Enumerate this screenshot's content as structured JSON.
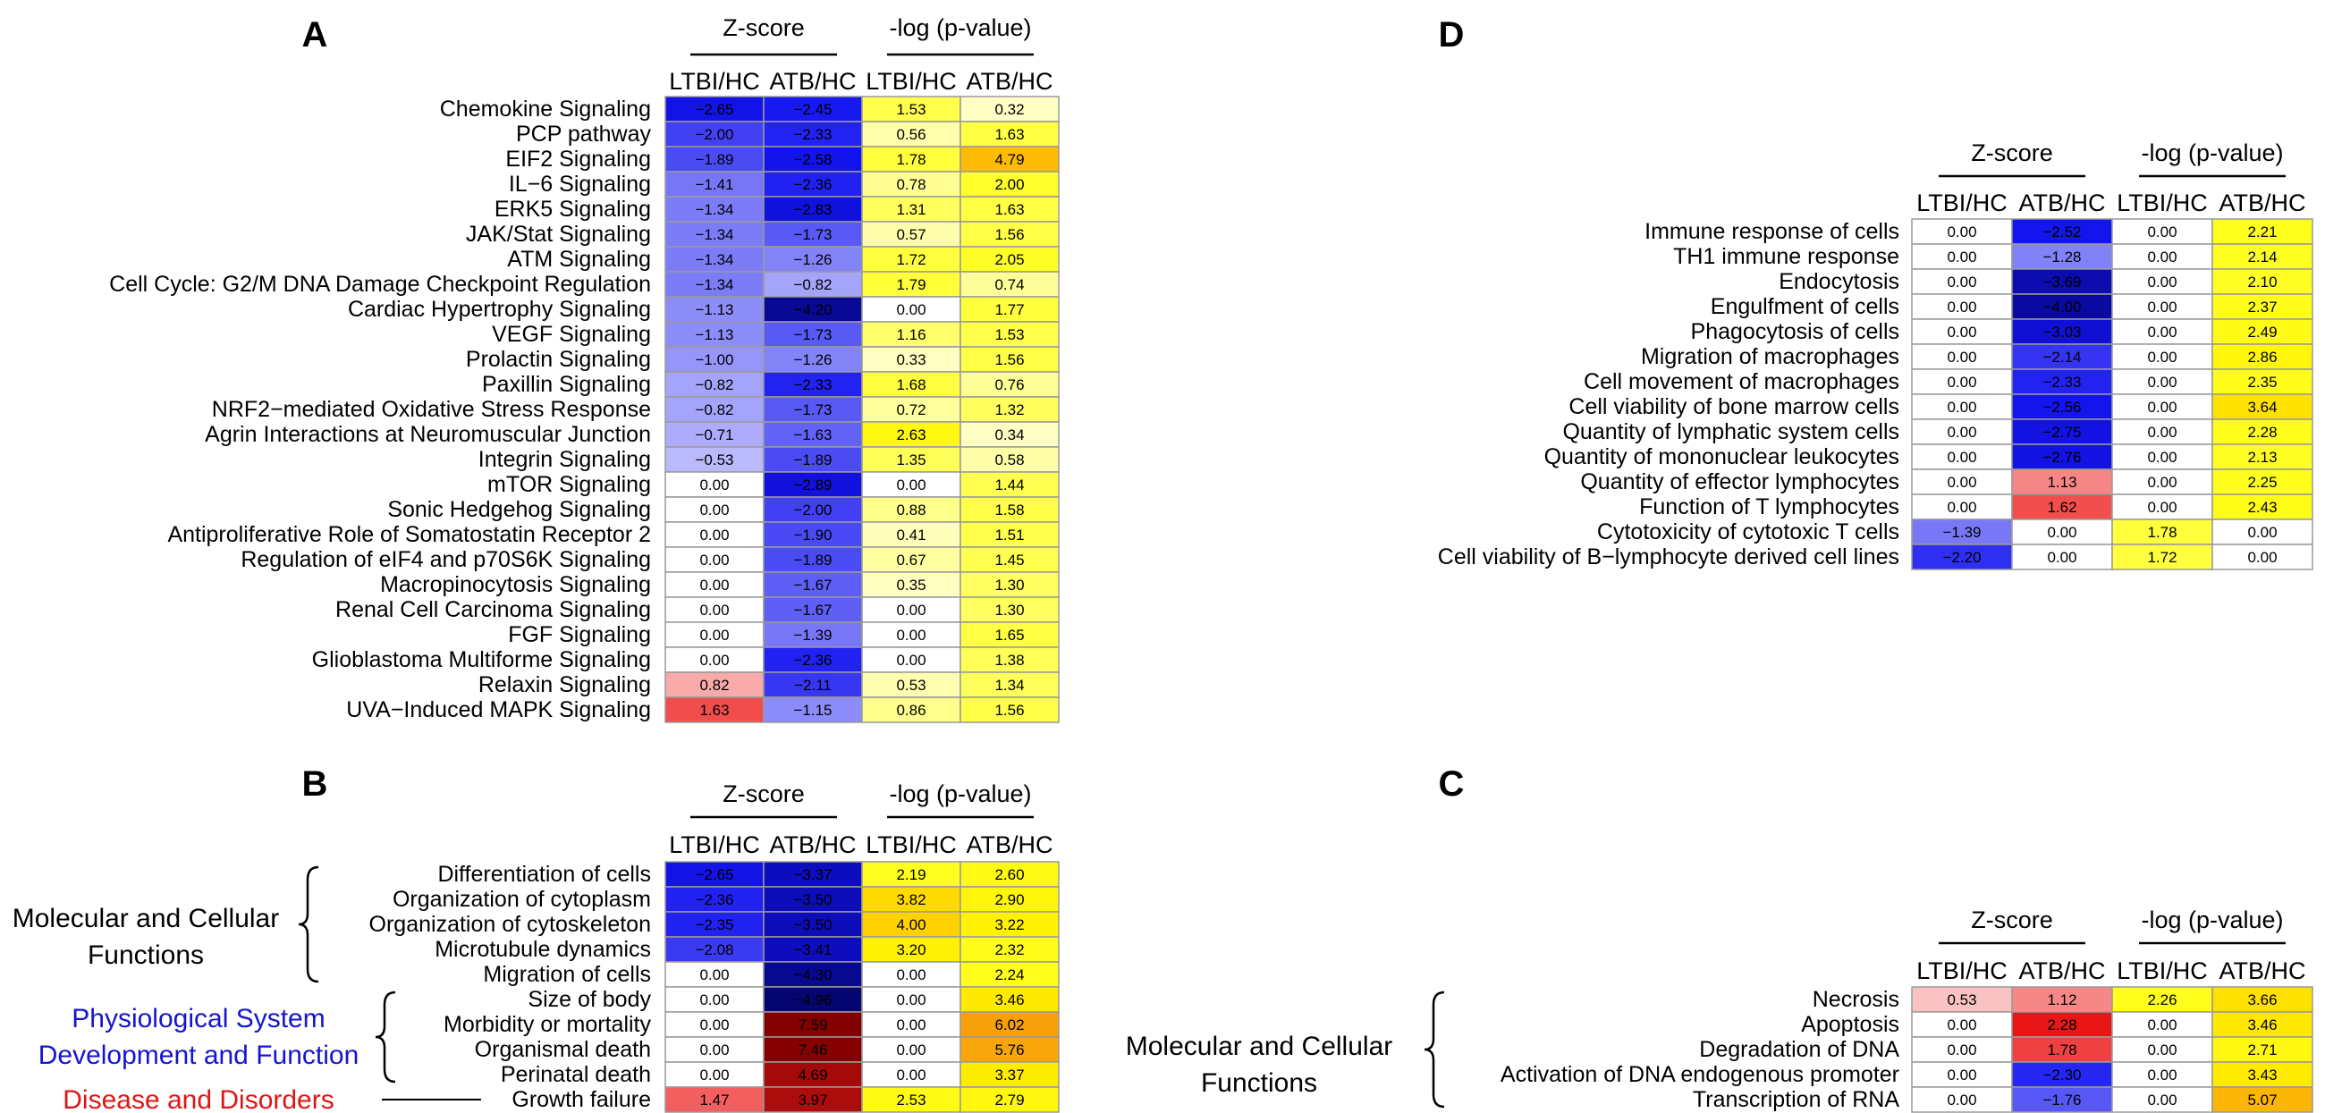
{
  "figure": {
    "background": "#ffffff",
    "grid_line_color": "#9a9a9a"
  },
  "chart_data": [
    {
      "type": "heatmap",
      "panel": "A",
      "group_headers": [
        "Z-score",
        "-log (p-value)"
      ],
      "columns": [
        "LTBI/HC",
        "ATB/HC",
        "LTBI/HC",
        "ATB/HC"
      ],
      "rows": [
        "Chemokine Signaling",
        "PCP pathway",
        "EIF2 Signaling",
        "IL−6 Signaling",
        "ERK5 Signaling",
        "JAK/Stat Signaling",
        "ATM Signaling",
        "Cell Cycle: G2/M DNA Damage Checkpoint Regulation",
        "Cardiac Hypertrophy Signaling",
        "VEGF Signaling",
        "Prolactin Signaling",
        "Paxillin Signaling",
        "NRF2−mediated Oxidative Stress Response",
        "Agrin Interactions at Neuromuscular Junction",
        "Integrin Signaling",
        "mTOR Signaling",
        "Sonic Hedgehog Signaling",
        "Antiproliferative Role of Somatostatin Receptor 2",
        "Regulation of eIF4 and p70S6K Signaling",
        "Macropinocytosis Signaling",
        "Renal Cell Carcinoma Signaling",
        "FGF Signaling",
        "Glioblastoma Multiforme Signaling",
        "Relaxin Signaling",
        "UVA−Induced MAPK Signaling"
      ],
      "zscore": [
        [
          -2.65,
          -2.45
        ],
        [
          -2.0,
          -2.33
        ],
        [
          -1.89,
          -2.58
        ],
        [
          -1.41,
          -2.36
        ],
        [
          -1.34,
          -2.83
        ],
        [
          -1.34,
          -1.73
        ],
        [
          -1.34,
          -1.26
        ],
        [
          -1.34,
          -0.82
        ],
        [
          -1.13,
          -4.2
        ],
        [
          -1.13,
          -1.73
        ],
        [
          -1.0,
          -1.26
        ],
        [
          -0.82,
          -2.33
        ],
        [
          -0.82,
          -1.73
        ],
        [
          -0.71,
          -1.63
        ],
        [
          -0.53,
          -1.89
        ],
        [
          0.0,
          -2.89
        ],
        [
          0.0,
          -2.0
        ],
        [
          0.0,
          -1.9
        ],
        [
          0.0,
          -1.89
        ],
        [
          0.0,
          -1.67
        ],
        [
          0.0,
          -1.67
        ],
        [
          0.0,
          -1.39
        ],
        [
          0.0,
          -2.36
        ],
        [
          0.82,
          -2.11
        ],
        [
          1.63,
          -1.15
        ]
      ],
      "pvalue": [
        [
          1.53,
          0.32
        ],
        [
          0.56,
          1.63
        ],
        [
          1.78,
          4.79
        ],
        [
          0.78,
          2.0
        ],
        [
          1.31,
          1.63
        ],
        [
          0.57,
          1.56
        ],
        [
          1.72,
          2.05
        ],
        [
          1.79,
          0.74
        ],
        [
          0.0,
          1.77
        ],
        [
          1.16,
          1.53
        ],
        [
          0.33,
          1.56
        ],
        [
          1.68,
          0.76
        ],
        [
          0.72,
          1.32
        ],
        [
          2.63,
          0.34
        ],
        [
          1.35,
          0.58
        ],
        [
          0.0,
          1.44
        ],
        [
          0.88,
          1.58
        ],
        [
          0.41,
          1.51
        ],
        [
          0.67,
          1.45
        ],
        [
          0.35,
          1.3
        ],
        [
          0.0,
          1.3
        ],
        [
          0.0,
          1.65
        ],
        [
          0.0,
          1.38
        ],
        [
          0.53,
          1.34
        ],
        [
          0.86,
          1.56
        ]
      ],
      "zscore_text": [
        [
          "−2.65",
          "−2.45"
        ],
        [
          "−2.00",
          "−2.33"
        ],
        [
          "−1.89",
          "−2.58"
        ],
        [
          "−1.41",
          "−2.36"
        ],
        [
          "−1.34",
          "−2.83"
        ],
        [
          "−1.34",
          "−1.73"
        ],
        [
          "−1.34",
          "−1.26"
        ],
        [
          "−1.34",
          "−0.82"
        ],
        [
          "−1.13",
          "−4.20"
        ],
        [
          "−1.13",
          "−1.73"
        ],
        [
          "−1.00",
          "−1.26"
        ],
        [
          "−0.82",
          "−2.33"
        ],
        [
          "−0.82",
          "−1.73"
        ],
        [
          "−0.71",
          "−1.63"
        ],
        [
          "−0.53",
          "−1.89"
        ],
        [
          "0.00",
          "−2.89"
        ],
        [
          "0.00",
          "−2.00"
        ],
        [
          "0.00",
          "−1.90"
        ],
        [
          "0.00",
          "−1.89"
        ],
        [
          "0.00",
          "−1.67"
        ],
        [
          "0.00",
          "−1.67"
        ],
        [
          "0.00",
          "−1.39"
        ],
        [
          "0.00",
          "−2.36"
        ],
        [
          "0.82",
          "−2.11"
        ],
        [
          "1.63",
          "−1.15"
        ]
      ],
      "pvalue_text": [
        [
          "1.53",
          "0.32"
        ],
        [
          "0.56",
          "1.63"
        ],
        [
          "1.78",
          "4.79"
        ],
        [
          "0.78",
          "2.00"
        ],
        [
          "1.31",
          "1.63"
        ],
        [
          "0.57",
          "1.56"
        ],
        [
          "1.72",
          "2.05"
        ],
        [
          "1.79",
          "0.74"
        ],
        [
          "0.00",
          "1.77"
        ],
        [
          "1.16",
          "1.53"
        ],
        [
          "0.33",
          "1.56"
        ],
        [
          "1.68",
          "0.76"
        ],
        [
          "0.72",
          "1.32"
        ],
        [
          "2.63",
          "0.34"
        ],
        [
          "1.35",
          "0.58"
        ],
        [
          "0.00",
          "1.44"
        ],
        [
          "0.88",
          "1.58"
        ],
        [
          "0.41",
          "1.51"
        ],
        [
          "0.67",
          "1.45"
        ],
        [
          "0.35",
          "1.30"
        ],
        [
          "0.00",
          "1.30"
        ],
        [
          "0.00",
          "1.65"
        ],
        [
          "0.00",
          "1.38"
        ],
        [
          "0.53",
          "1.34"
        ],
        [
          "0.86",
          "1.56"
        ]
      ],
      "groups": []
    },
    {
      "type": "heatmap",
      "panel": "B",
      "group_headers": [
        "Z-score",
        "-log (p-value)"
      ],
      "columns": [
        "LTBI/HC",
        "ATB/HC",
        "LTBI/HC",
        "ATB/HC"
      ],
      "rows": [
        "Differentiation of cells",
        "Organization of cytoplasm",
        "Organization of cytoskeleton",
        "Microtubule dynamics",
        "Migration of cells",
        "Size of body",
        "Morbidity or mortality",
        "Organismal death",
        "Perinatal death",
        "Growth failure"
      ],
      "zscore": [
        [
          -2.65,
          -3.37
        ],
        [
          -2.36,
          -3.5
        ],
        [
          -2.35,
          -3.5
        ],
        [
          -2.08,
          -3.41
        ],
        [
          0.0,
          -4.3
        ],
        [
          0.0,
          -4.96
        ],
        [
          0.0,
          7.59
        ],
        [
          0.0,
          7.46
        ],
        [
          0.0,
          4.69
        ],
        [
          1.47,
          3.97
        ]
      ],
      "pvalue": [
        [
          2.19,
          2.6
        ],
        [
          3.82,
          2.9
        ],
        [
          4.0,
          3.22
        ],
        [
          3.2,
          2.32
        ],
        [
          0.0,
          2.24
        ],
        [
          0.0,
          3.46
        ],
        [
          0.0,
          6.02
        ],
        [
          0.0,
          5.76
        ],
        [
          0.0,
          3.37
        ],
        [
          2.53,
          2.79
        ]
      ],
      "zscore_text": [
        [
          "−2.65",
          "−3.37"
        ],
        [
          "−2.36",
          "−3.50"
        ],
        [
          "−2.35",
          "−3.50"
        ],
        [
          "−2.08",
          "−3.41"
        ],
        [
          "0.00",
          "−4.30"
        ],
        [
          "0.00",
          "−4.96"
        ],
        [
          "0.00",
          "7.59"
        ],
        [
          "0.00",
          "7.46"
        ],
        [
          "0.00",
          "4.69"
        ],
        [
          "1.47",
          "3.97"
        ]
      ],
      "pvalue_text": [
        [
          "2.19",
          "2.60"
        ],
        [
          "3.82",
          "2.90"
        ],
        [
          "4.00",
          "3.22"
        ],
        [
          "3.20",
          "2.32"
        ],
        [
          "0.00",
          "2.24"
        ],
        [
          "0.00",
          "3.46"
        ],
        [
          "0.00",
          "6.02"
        ],
        [
          "0.00",
          "5.76"
        ],
        [
          "0.00",
          "3.37"
        ],
        [
          "2.53",
          "2.79"
        ]
      ],
      "groups": [
        {
          "lines": [
            "Molecular and Cellular",
            "Functions"
          ],
          "color": "#000000",
          "first_row": 0,
          "last_row": 4,
          "marker": "brace"
        },
        {
          "lines": [
            "Physiological System",
            "Development and Function"
          ],
          "color": "#1515d0",
          "first_row": 5,
          "last_row": 8,
          "marker": "brace"
        },
        {
          "lines": [
            "Disease and Disorders"
          ],
          "color": "#e01515",
          "first_row": 9,
          "last_row": 9,
          "marker": "line"
        }
      ]
    },
    {
      "type": "heatmap",
      "panel": "D",
      "group_headers": [
        "Z-score",
        "-log (p-value)"
      ],
      "columns": [
        "LTBI/HC",
        "ATB/HC",
        "LTBI/HC",
        "ATB/HC"
      ],
      "rows": [
        "Immune response of cells",
        "TH1 immune response",
        "Endocytosis",
        "Engulfment of cells",
        "Phagocytosis of cells",
        "Migration of macrophages",
        "Cell movement of macrophages",
        "Cell viability of bone marrow cells",
        "Quantity of lymphatic system cells",
        "Quantity of mononuclear leukocytes",
        "Quantity of effector lymphocytes",
        "Function of T lymphocytes",
        "Cytotoxicity of cytotoxic T cells",
        "Cell viability of B−lymphocyte derived cell lines"
      ],
      "zscore": [
        [
          0.0,
          -2.52
        ],
        [
          0.0,
          -1.28
        ],
        [
          0.0,
          -3.69
        ],
        [
          0.0,
          -4.0
        ],
        [
          0.0,
          -3.03
        ],
        [
          0.0,
          -2.14
        ],
        [
          0.0,
          -2.33
        ],
        [
          0.0,
          -2.56
        ],
        [
          0.0,
          -2.75
        ],
        [
          0.0,
          -2.76
        ],
        [
          0.0,
          1.13
        ],
        [
          0.0,
          1.62
        ],
        [
          -1.39,
          0.0
        ],
        [
          -2.2,
          0.0
        ]
      ],
      "pvalue": [
        [
          0.0,
          2.21
        ],
        [
          0.0,
          2.14
        ],
        [
          0.0,
          2.1
        ],
        [
          0.0,
          2.37
        ],
        [
          0.0,
          2.49
        ],
        [
          0.0,
          2.86
        ],
        [
          0.0,
          2.35
        ],
        [
          0.0,
          3.64
        ],
        [
          0.0,
          2.28
        ],
        [
          0.0,
          2.13
        ],
        [
          0.0,
          2.25
        ],
        [
          0.0,
          2.43
        ],
        [
          1.78,
          0.0
        ],
        [
          1.72,
          0.0
        ]
      ],
      "zscore_text": [
        [
          "0.00",
          "−2.52"
        ],
        [
          "0.00",
          "−1.28"
        ],
        [
          "0.00",
          "−3.69"
        ],
        [
          "0.00",
          "−4.00"
        ],
        [
          "0.00",
          "−3.03"
        ],
        [
          "0.00",
          "−2.14"
        ],
        [
          "0.00",
          "−2.33"
        ],
        [
          "0.00",
          "−2.56"
        ],
        [
          "0.00",
          "−2.75"
        ],
        [
          "0.00",
          "−2.76"
        ],
        [
          "0.00",
          "1.13"
        ],
        [
          "0.00",
          "1.62"
        ],
        [
          "−1.39",
          "0.00"
        ],
        [
          "−2.20",
          "0.00"
        ]
      ],
      "pvalue_text": [
        [
          "0.00",
          "2.21"
        ],
        [
          "0.00",
          "2.14"
        ],
        [
          "0.00",
          "2.10"
        ],
        [
          "0.00",
          "2.37"
        ],
        [
          "0.00",
          "2.49"
        ],
        [
          "0.00",
          "2.86"
        ],
        [
          "0.00",
          "2.35"
        ],
        [
          "0.00",
          "3.64"
        ],
        [
          "0.00",
          "2.28"
        ],
        [
          "0.00",
          "2.13"
        ],
        [
          "0.00",
          "2.25"
        ],
        [
          "0.00",
          "2.43"
        ],
        [
          "1.78",
          "0.00"
        ],
        [
          "1.72",
          "0.00"
        ]
      ],
      "groups": []
    },
    {
      "type": "heatmap",
      "panel": "C",
      "group_headers": [
        "Z-score",
        "-log (p-value)"
      ],
      "columns": [
        "LTBI/HC",
        "ATB/HC",
        "LTBI/HC",
        "ATB/HC"
      ],
      "rows": [
        "Necrosis",
        "Apoptosis",
        "Degradation of DNA",
        "Activation of DNA endogenous promoter",
        "Transcription of RNA"
      ],
      "zscore": [
        [
          0.53,
          1.12
        ],
        [
          0.0,
          2.28
        ],
        [
          0.0,
          1.78
        ],
        [
          0.0,
          -2.3
        ],
        [
          0.0,
          -1.76
        ]
      ],
      "pvalue": [
        [
          2.26,
          3.66
        ],
        [
          0.0,
          3.46
        ],
        [
          0.0,
          2.71
        ],
        [
          0.0,
          3.43
        ],
        [
          0.0,
          5.07
        ]
      ],
      "zscore_text": [
        [
          "0.53",
          "1.12"
        ],
        [
          "0.00",
          "2.28"
        ],
        [
          "0.00",
          "1.78"
        ],
        [
          "0.00",
          "−2.30"
        ],
        [
          "0.00",
          "−1.76"
        ]
      ],
      "pvalue_text": [
        [
          "2.26",
          "3.66"
        ],
        [
          "0.00",
          "3.46"
        ],
        [
          "0.00",
          "2.71"
        ],
        [
          "0.00",
          "3.43"
        ],
        [
          "0.00",
          "5.07"
        ]
      ],
      "groups": [
        {
          "lines": [
            "Molecular and Cellular",
            "Functions"
          ],
          "color": "#000000",
          "first_row": 0,
          "last_row": 4,
          "marker": "brace"
        }
      ]
    }
  ]
}
